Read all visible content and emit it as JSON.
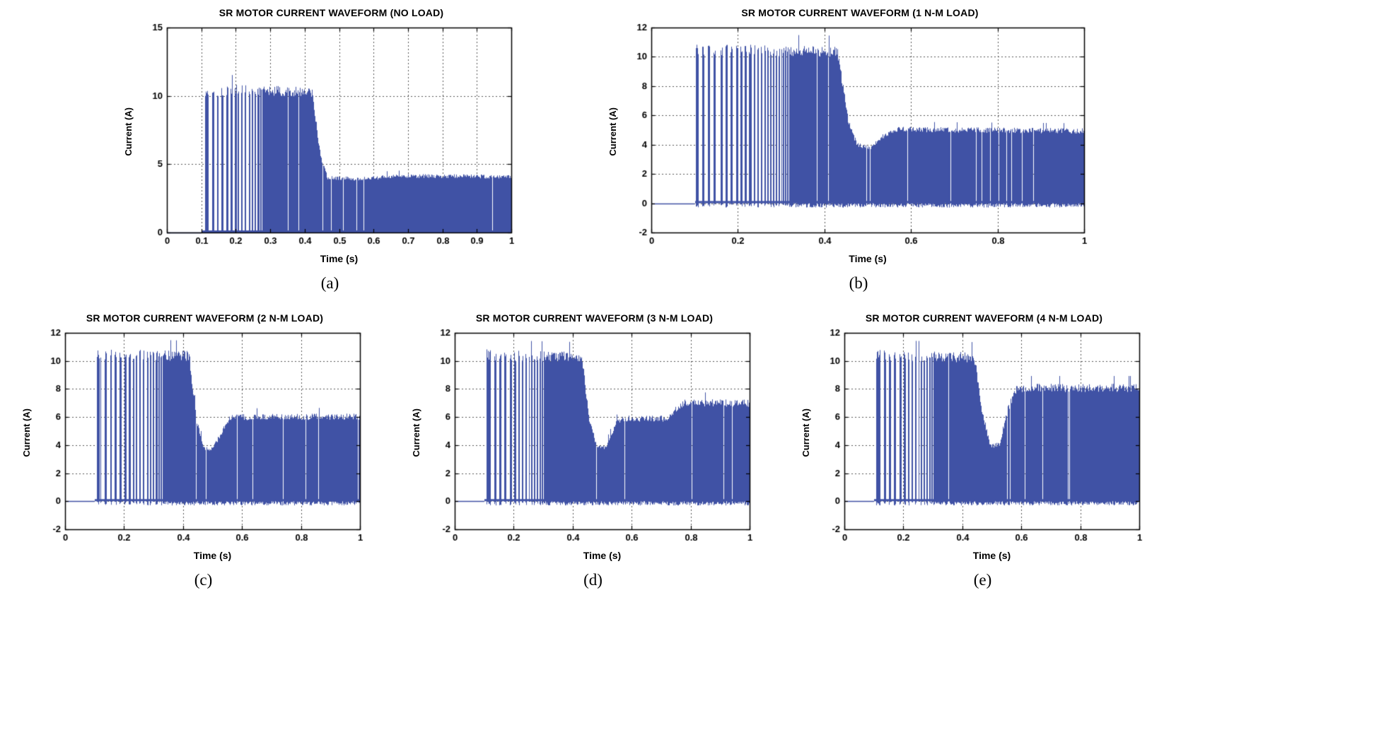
{
  "page": {
    "background": "#ffffff"
  },
  "colors": {
    "waveform": "#4052a5",
    "grid": "#555555",
    "axis": "#000000",
    "text": "#000000"
  },
  "chart_data": [
    {
      "type": "line",
      "caption": "(a)",
      "title": "SR MOTOR CURRENT WAVEFORM (NO LOAD)",
      "xlabel": "Time (s)",
      "ylabel": "Current (A)",
      "xlim": [
        0,
        1
      ],
      "ylim": [
        0,
        15
      ],
      "xticks": [
        0,
        0.1,
        0.2,
        0.3,
        0.4,
        0.5,
        0.6,
        0.7,
        0.8,
        0.9,
        1
      ],
      "yticks": [
        0,
        5,
        10,
        15
      ],
      "grid": true,
      "signal_start": 0.1,
      "sparse_until": 0.28,
      "peak_current_A": 11,
      "steady_current_A": 4.3,
      "envelope": [
        [
          0,
          0
        ],
        [
          0.099,
          0
        ],
        [
          0.1,
          10.8
        ],
        [
          0.2,
          11
        ],
        [
          0.42,
          10.8
        ],
        [
          0.445,
          6.0
        ],
        [
          0.465,
          4.2
        ],
        [
          0.55,
          4.15
        ],
        [
          0.7,
          4.35
        ],
        [
          1,
          4.3
        ]
      ],
      "seed": 101
    },
    {
      "type": "line",
      "caption": "(b)",
      "title": "SR MOTOR CURRENT WAVEFORM (1 N-M LOAD)",
      "xlabel": "Time (s)",
      "ylabel": "Current (A)",
      "xlim": [
        0,
        1
      ],
      "ylim": [
        -2,
        12
      ],
      "xticks": [
        0,
        0.2,
        0.4,
        0.6,
        0.8,
        1
      ],
      "yticks": [
        -2,
        0,
        2,
        4,
        6,
        8,
        10,
        12
      ],
      "grid": true,
      "signal_start": 0.1,
      "sparse_until": 0.32,
      "peak_current_A": 11,
      "steady_current_A": 5.2,
      "envelope": [
        [
          0,
          0
        ],
        [
          0.099,
          0
        ],
        [
          0.1,
          11
        ],
        [
          0.2,
          11
        ],
        [
          0.43,
          10.9
        ],
        [
          0.455,
          5.8
        ],
        [
          0.475,
          4.2
        ],
        [
          0.505,
          4.0
        ],
        [
          0.535,
          4.8
        ],
        [
          0.565,
          5.3
        ],
        [
          1,
          5.2
        ]
      ],
      "seed": 102
    },
    {
      "type": "line",
      "caption": "(c)",
      "title": "SR MOTOR CURRENT WAVEFORM (2 N-M LOAD)",
      "xlabel": "Time (s)",
      "ylabel": "Current (A)",
      "xlim": [
        0,
        1
      ],
      "ylim": [
        -2,
        12
      ],
      "xticks": [
        0,
        0.2,
        0.4,
        0.6,
        0.8,
        1
      ],
      "yticks": [
        -2,
        0,
        2,
        4,
        6,
        8,
        10,
        12
      ],
      "grid": true,
      "signal_start": 0.1,
      "sparse_until": 0.33,
      "peak_current_A": 11,
      "steady_current_A": 6.3,
      "envelope": [
        [
          0,
          0
        ],
        [
          0.099,
          0
        ],
        [
          0.1,
          11
        ],
        [
          0.2,
          11
        ],
        [
          0.42,
          10.9
        ],
        [
          0.445,
          6.0
        ],
        [
          0.47,
          4.0
        ],
        [
          0.5,
          3.9
        ],
        [
          0.53,
          5.2
        ],
        [
          0.56,
          6.3
        ],
        [
          1,
          6.35
        ]
      ],
      "seed": 103
    },
    {
      "type": "line",
      "caption": "(d)",
      "title": "SR MOTOR CURRENT WAVEFORM (3 N-M LOAD)",
      "xlabel": "Time (s)",
      "ylabel": "Current (A)",
      "xlim": [
        0,
        1
      ],
      "ylim": [
        -2,
        12
      ],
      "xticks": [
        0,
        0.2,
        0.4,
        0.6,
        0.8,
        1
      ],
      "yticks": [
        -2,
        0,
        2,
        4,
        6,
        8,
        10,
        12
      ],
      "grid": true,
      "signal_start": 0.1,
      "sparse_until": 0.3,
      "peak_current_A": 11,
      "steady_current_A": 7.4,
      "envelope": [
        [
          0,
          0
        ],
        [
          0.099,
          0
        ],
        [
          0.1,
          11
        ],
        [
          0.2,
          10.9
        ],
        [
          0.43,
          10.8
        ],
        [
          0.455,
          6.2
        ],
        [
          0.48,
          4.1
        ],
        [
          0.51,
          4.0
        ],
        [
          0.545,
          5.8
        ],
        [
          0.565,
          6.2
        ],
        [
          0.72,
          6.2
        ],
        [
          0.75,
          6.9
        ],
        [
          0.78,
          7.4
        ],
        [
          1,
          7.35
        ]
      ],
      "seed": 104
    },
    {
      "type": "line",
      "caption": "(e)",
      "title": "SR MOTOR CURRENT WAVEFORM (4 N-M LOAD)",
      "xlabel": "Time (s)",
      "ylabel": "Current (A)",
      "xlim": [
        0,
        1
      ],
      "ylim": [
        -2,
        12
      ],
      "xticks": [
        0,
        0.2,
        0.4,
        0.6,
        0.8,
        1
      ],
      "yticks": [
        -2,
        0,
        2,
        4,
        6,
        8,
        10,
        12
      ],
      "grid": true,
      "signal_start": 0.1,
      "sparse_until": 0.3,
      "peak_current_A": 11,
      "steady_current_A": 8.5,
      "envelope": [
        [
          0,
          0
        ],
        [
          0.099,
          0
        ],
        [
          0.1,
          11
        ],
        [
          0.2,
          10.9
        ],
        [
          0.44,
          10.8
        ],
        [
          0.465,
          6.8
        ],
        [
          0.495,
          4.1
        ],
        [
          0.525,
          4.3
        ],
        [
          0.555,
          7.0
        ],
        [
          0.585,
          8.5
        ],
        [
          1,
          8.5
        ]
      ],
      "seed": 105
    }
  ]
}
